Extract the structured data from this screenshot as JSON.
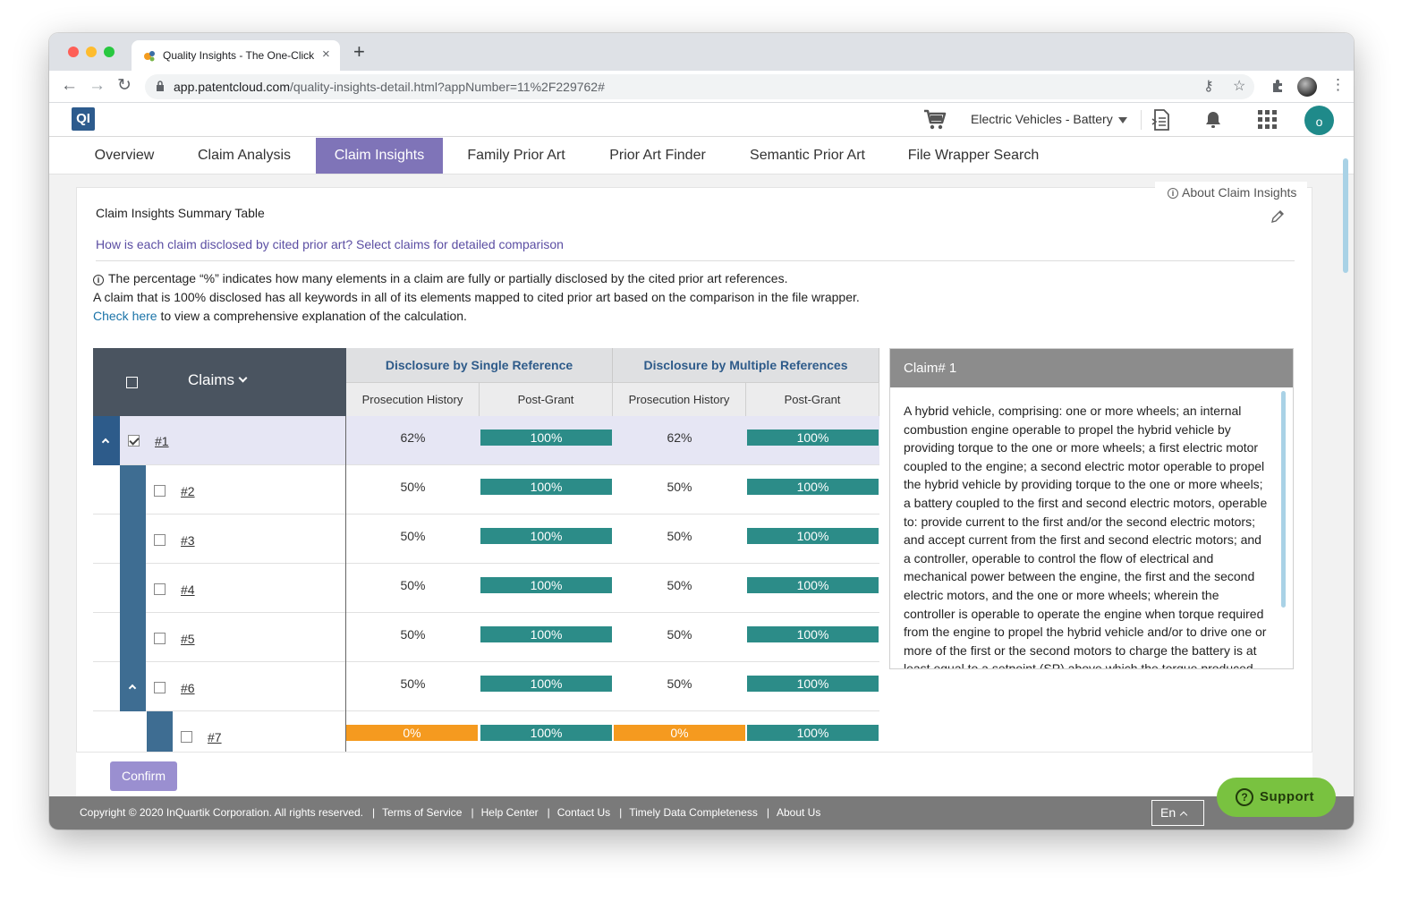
{
  "browser": {
    "tab_title": "Quality Insights - The One-Click",
    "url_host": "app.patentcloud.com",
    "url_path": "/quality-insights-detail.html?appNumber=11%2F229762#"
  },
  "header": {
    "logo_text": "QI",
    "database_label": "Electric Vehicles - Battery",
    "avatar_letter": "o"
  },
  "nav": {
    "tabs": [
      "Overview",
      "Claim Analysis",
      "Claim Insights",
      "Family Prior Art",
      "Prior Art Finder",
      "Semantic Prior Art",
      "File Wrapper Search"
    ],
    "active_tab": "Claim Insights"
  },
  "summary": {
    "about_label": "About Claim Insights",
    "title": "Claim Insights Summary Table",
    "question": "How is each claim disclosed by cited prior art? Select claims for detailed comparison",
    "info_line_1": "The percentage “%” indicates how many elements in a claim are fully or partially disclosed by the cited prior art references.",
    "info_line_2": "A claim that is 100% disclosed has all keywords in all of its elements mapped to cited prior art based on the comparison in the file wrapper.",
    "check_here_link": "Check here",
    "info_line_3_rest": " to view a comprehensive explanation of the calculation."
  },
  "table": {
    "claims_header": "Claims",
    "group_single": "Disclosure by Single Reference",
    "group_multiple": "Disclosure by Multiple References",
    "sub_prosecution": "Prosecution History",
    "sub_postgrant": "Post-Grant",
    "rows": [
      {
        "claim": "#1",
        "level": 0,
        "checked": true,
        "expanded": true,
        "single_prosecution": "62%",
        "single_postgrant": "100%",
        "multi_prosecution": "62%",
        "multi_postgrant": "100%"
      },
      {
        "claim": "#2",
        "level": 1,
        "checked": false,
        "expanded": false,
        "single_prosecution": "50%",
        "single_postgrant": "100%",
        "multi_prosecution": "50%",
        "multi_postgrant": "100%"
      },
      {
        "claim": "#3",
        "level": 1,
        "checked": false,
        "expanded": false,
        "single_prosecution": "50%",
        "single_postgrant": "100%",
        "multi_prosecution": "50%",
        "multi_postgrant": "100%"
      },
      {
        "claim": "#4",
        "level": 1,
        "checked": false,
        "expanded": false,
        "single_prosecution": "50%",
        "single_postgrant": "100%",
        "multi_prosecution": "50%",
        "multi_postgrant": "100%"
      },
      {
        "claim": "#5",
        "level": 1,
        "checked": false,
        "expanded": false,
        "single_prosecution": "50%",
        "single_postgrant": "100%",
        "multi_prosecution": "50%",
        "multi_postgrant": "100%"
      },
      {
        "claim": "#6",
        "level": 1,
        "checked": false,
        "expanded": true,
        "single_prosecution": "50%",
        "single_postgrant": "100%",
        "multi_prosecution": "50%",
        "multi_postgrant": "100%"
      },
      {
        "claim": "#7",
        "level": 2,
        "checked": false,
        "expanded": false,
        "single_prosecution": "0%",
        "single_postgrant": "100%",
        "multi_prosecution": "0%",
        "multi_postgrant": "100%"
      }
    ]
  },
  "claim_panel": {
    "title": "Claim# 1",
    "text": "A hybrid vehicle, comprising: one or more wheels; an internal combustion engine operable to propel the hybrid vehicle by providing torque to the one or more wheels; a first electric motor coupled to the engine; a second electric motor operable to propel the hybrid vehicle by providing torque to the one or more wheels; a battery coupled to the first and second electric motors, operable to: provide current to the first and/or the second electric motors; and accept current from the first and second electric motors; and a controller, operable to control the flow of electrical and mechanical power between the engine, the first and the second electric motors, and the one or more wheels; wherein the controller is operable to operate the engine when torque required from the engine to propel the hybrid vehicle and/or to drive one or more of the first or the second motors to charge the battery is at least equal to a setpoint (SP) above which the torque produced"
  },
  "actions": {
    "confirm_label": "Confirm",
    "support_label": "Support",
    "language": "En"
  },
  "footer": {
    "copyright": "Copyright © 2020 InQuartik Corporation. All rights reserved.",
    "links": [
      "Terms of Service",
      "Help Center",
      "Contact Us",
      "Timely Data Completeness",
      "About Us"
    ]
  },
  "colors": {
    "accent_purple": "#7f74b8",
    "bar_teal": "#2c8c88",
    "bar_orange": "#f59a1f",
    "support_green": "#79c240"
  }
}
